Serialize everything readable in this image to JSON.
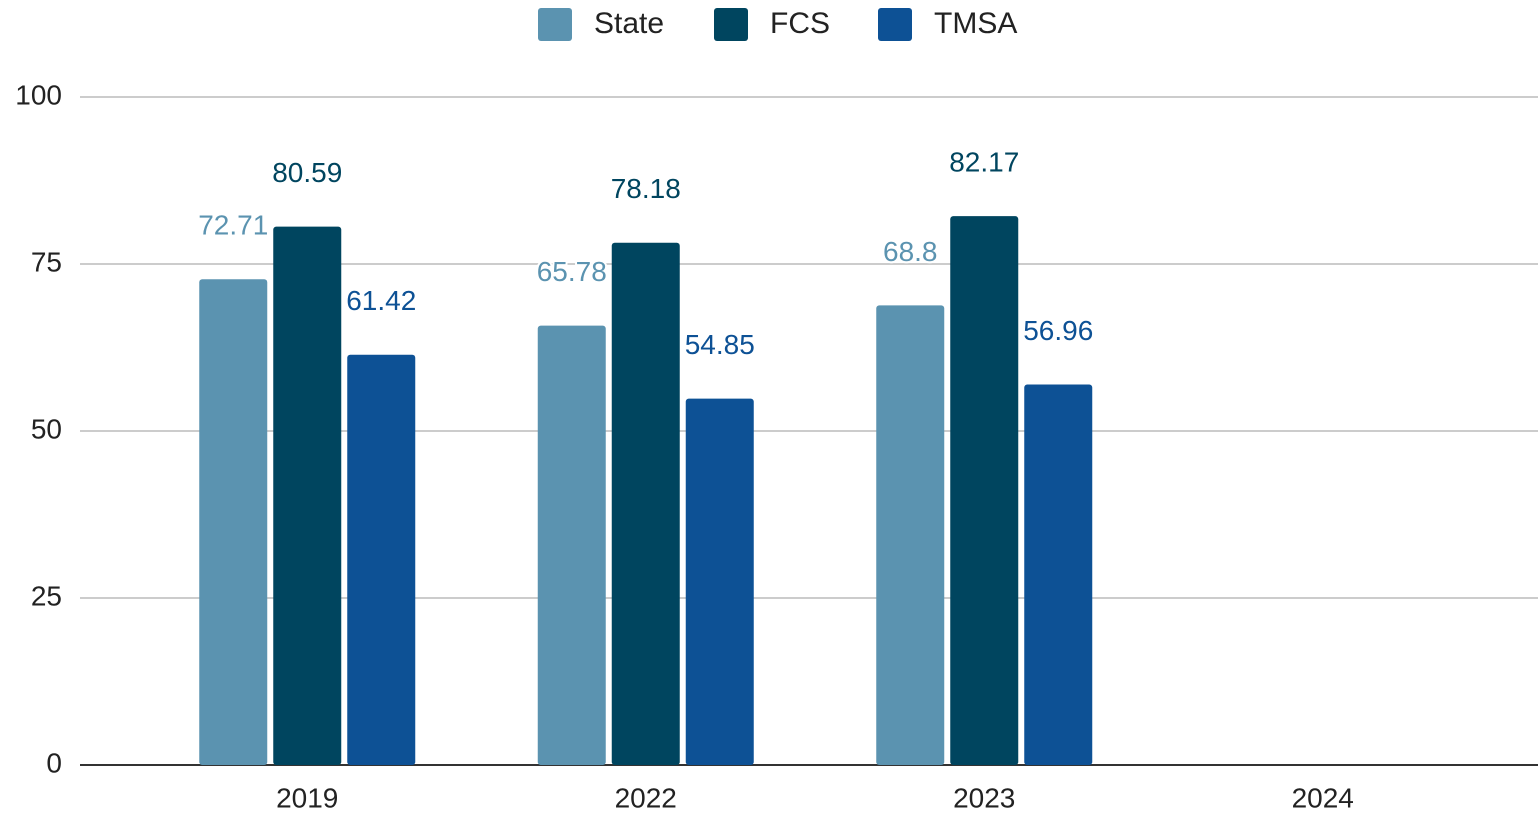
{
  "chart_data": {
    "type": "bar",
    "categories": [
      "2019",
      "2022",
      "2023",
      "2024"
    ],
    "series": [
      {
        "name": "State",
        "color": "#5b93b0",
        "values": [
          72.71,
          65.78,
          68.8,
          null
        ]
      },
      {
        "name": "FCS",
        "color": "#00455f",
        "values": [
          80.59,
          78.18,
          82.17,
          null
        ]
      },
      {
        "name": "TMSA",
        "color": "#0d5195",
        "values": [
          61.42,
          54.85,
          56.96,
          null
        ]
      }
    ],
    "ylim": [
      0,
      100
    ],
    "yticks": [
      0,
      25,
      50,
      75,
      100
    ],
    "grid": true,
    "legend": "top"
  }
}
